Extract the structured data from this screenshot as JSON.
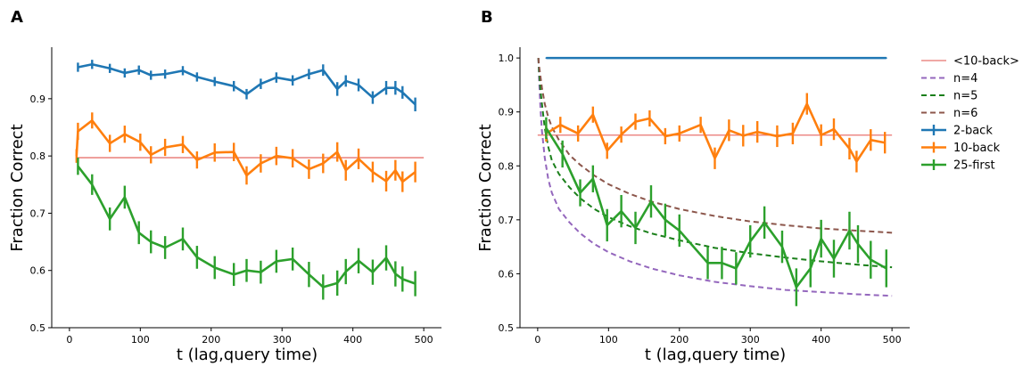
{
  "chart_data": [
    {
      "panel_label": "A",
      "type": "line",
      "xlabel": "t (lag,query time)",
      "ylabel": "Fraction Correct",
      "xlim": [
        -25,
        525
      ],
      "ylim": [
        0.5,
        0.99
      ],
      "xticks": [
        0,
        100,
        200,
        300,
        400,
        500
      ],
      "yticks": [
        0.5,
        0.6,
        0.7,
        0.8,
        0.9
      ],
      "grid": false,
      "hline": {
        "y": 0.797,
        "x_range": [
          10,
          500
        ],
        "color": "#e8736f"
      },
      "series": [
        {
          "color": "#1f77b4",
          "points": [
            [
              12,
              0.955
            ],
            [
              32,
              0.96
            ],
            [
              57,
              0.953
            ],
            [
              78,
              0.945
            ],
            [
              98,
              0.95
            ],
            [
              115,
              0.941
            ],
            [
              135,
              0.943
            ],
            [
              160,
              0.949
            ],
            [
              180,
              0.938
            ],
            [
              205,
              0.93
            ],
            [
              232,
              0.922
            ],
            [
              250,
              0.908
            ],
            [
              270,
              0.926
            ],
            [
              292,
              0.937
            ],
            [
              315,
              0.932
            ],
            [
              338,
              0.943
            ],
            [
              358,
              0.95
            ],
            [
              378,
              0.917
            ],
            [
              390,
              0.931
            ],
            [
              408,
              0.924
            ],
            [
              428,
              0.902
            ],
            [
              447,
              0.919
            ],
            [
              460,
              0.919
            ],
            [
              470,
              0.911
            ],
            [
              488,
              0.89
            ]
          ],
          "err": [
            0.008,
            0.008,
            0.008,
            0.008,
            0.008,
            0.008,
            0.008,
            0.008,
            0.008,
            0.008,
            0.009,
            0.009,
            0.009,
            0.009,
            0.009,
            0.009,
            0.01,
            0.012,
            0.01,
            0.011,
            0.011,
            0.012,
            0.012,
            0.011,
            0.012
          ]
        },
        {
          "color": "#ff7f0e",
          "points": [
            [
              10,
              0.8
            ],
            [
              12,
              0.843
            ],
            [
              32,
              0.862
            ],
            [
              57,
              0.822
            ],
            [
              78,
              0.838
            ],
            [
              100,
              0.824
            ],
            [
              115,
              0.802
            ],
            [
              135,
              0.815
            ],
            [
              160,
              0.82
            ],
            [
              180,
              0.793
            ],
            [
              205,
              0.806
            ],
            [
              232,
              0.807
            ],
            [
              250,
              0.766
            ],
            [
              270,
              0.787
            ],
            [
              292,
              0.8
            ],
            [
              315,
              0.796
            ],
            [
              338,
              0.777
            ],
            [
              358,
              0.787
            ],
            [
              378,
              0.807
            ],
            [
              390,
              0.775
            ],
            [
              408,
              0.795
            ],
            [
              428,
              0.772
            ],
            [
              447,
              0.756
            ],
            [
              460,
              0.775
            ],
            [
              470,
              0.755
            ],
            [
              488,
              0.772
            ]
          ],
          "err": [
            0.012,
            0.015,
            0.014,
            0.015,
            0.015,
            0.015,
            0.015,
            0.015,
            0.015,
            0.015,
            0.016,
            0.016,
            0.016,
            0.016,
            0.016,
            0.016,
            0.017,
            0.017,
            0.017,
            0.018,
            0.018,
            0.018,
            0.018,
            0.018,
            0.018,
            0.018
          ]
        },
        {
          "color": "#2ca02c",
          "points": [
            [
              12,
              0.782
            ],
            [
              32,
              0.75
            ],
            [
              57,
              0.69
            ],
            [
              78,
              0.728
            ],
            [
              98,
              0.666
            ],
            [
              115,
              0.65
            ],
            [
              135,
              0.64
            ],
            [
              160,
              0.655
            ],
            [
              180,
              0.623
            ],
            [
              205,
              0.605
            ],
            [
              232,
              0.593
            ],
            [
              250,
              0.6
            ],
            [
              270,
              0.597
            ],
            [
              292,
              0.616
            ],
            [
              315,
              0.62
            ],
            [
              338,
              0.593
            ],
            [
              358,
              0.571
            ],
            [
              378,
              0.578
            ],
            [
              390,
              0.598
            ],
            [
              408,
              0.617
            ],
            [
              428,
              0.597
            ],
            [
              447,
              0.622
            ],
            [
              460,
              0.594
            ],
            [
              470,
              0.585
            ],
            [
              488,
              0.577
            ]
          ],
          "err": [
            0.015,
            0.018,
            0.02,
            0.02,
            0.02,
            0.02,
            0.02,
            0.02,
            0.02,
            0.02,
            0.02,
            0.02,
            0.02,
            0.02,
            0.02,
            0.022,
            0.022,
            0.022,
            0.022,
            0.022,
            0.022,
            0.022,
            0.022,
            0.022,
            0.022
          ]
        }
      ]
    },
    {
      "panel_label": "B",
      "type": "line",
      "xlabel": "t (lag,query time)",
      "ylabel": "Fraction Correct",
      "xlim": [
        -25,
        525
      ],
      "ylim": [
        0.5,
        1.02
      ],
      "xticks": [
        0,
        100,
        200,
        300,
        400,
        500
      ],
      "yticks": [
        0.5,
        0.6,
        0.7,
        0.8,
        0.9,
        1.0
      ],
      "grid": false,
      "legend_position": "right",
      "legend": [
        {
          "label": "<10-back>",
          "style": "thin",
          "color": "#e8736f"
        },
        {
          "label": "n=4",
          "style": "dashed",
          "color": "#9467bd"
        },
        {
          "label": "n=5",
          "style": "dashed",
          "color": "#1a7f1a"
        },
        {
          "label": "n=6",
          "style": "dashed",
          "color": "#8c564b"
        },
        {
          "label": "2-back",
          "style": "errorbar",
          "color": "#1f77b4"
        },
        {
          "label": "10-back",
          "style": "errorbar",
          "color": "#ff7f0e"
        },
        {
          "label": "25-first",
          "style": "errorbar",
          "color": "#2ca02c"
        }
      ],
      "hline": {
        "y": 0.857,
        "x_range": [
          0,
          500
        ],
        "color": "#e8736f"
      },
      "fit_curves": [
        {
          "name": "n=4",
          "color": "#9467bd",
          "x": [
            1,
            2,
            4,
            6,
            10,
            15,
            20,
            30,
            45,
            60,
            80,
            100,
            130,
            160,
            200,
            250,
            300,
            350,
            400,
            450,
            500
          ],
          "y": [
            1.0,
            0.96,
            0.905,
            0.865,
            0.815,
            0.775,
            0.75,
            0.72,
            0.695,
            0.675,
            0.655,
            0.64,
            0.623,
            0.61,
            0.597,
            0.585,
            0.577,
            0.57,
            0.566,
            0.562,
            0.559
          ]
        },
        {
          "name": "n=5",
          "color": "#1a7f1a",
          "x": [
            1,
            2,
            4,
            6,
            10,
            15,
            20,
            30,
            45,
            60,
            80,
            100,
            130,
            160,
            200,
            250,
            300,
            350,
            400,
            450,
            500
          ],
          "y": [
            1.0,
            0.975,
            0.94,
            0.915,
            0.87,
            0.835,
            0.81,
            0.785,
            0.76,
            0.74,
            0.72,
            0.705,
            0.688,
            0.675,
            0.662,
            0.648,
            0.638,
            0.63,
            0.623,
            0.617,
            0.612
          ]
        },
        {
          "name": "n=6",
          "color": "#8c564b",
          "x": [
            1,
            2,
            4,
            6,
            10,
            15,
            20,
            30,
            45,
            60,
            80,
            100,
            130,
            160,
            200,
            250,
            300,
            350,
            400,
            450,
            500
          ],
          "y": [
            1.0,
            0.985,
            0.965,
            0.945,
            0.915,
            0.89,
            0.872,
            0.848,
            0.82,
            0.802,
            0.782,
            0.766,
            0.748,
            0.734,
            0.72,
            0.707,
            0.697,
            0.69,
            0.684,
            0.68,
            0.676
          ]
        }
      ],
      "series": [
        {
          "name": "2-back",
          "color": "#1f77b4",
          "points": [
            [
              12,
              1.0
            ],
            [
              100,
              1.0
            ],
            [
              200,
              1.0
            ],
            [
              300,
              1.0
            ],
            [
              400,
              1.0
            ],
            [
              492,
              1.0
            ]
          ],
          "err": [
            0,
            0,
            0,
            0,
            0,
            0
          ]
        },
        {
          "name": "10-back",
          "color": "#ff7f0e",
          "points": [
            [
              12,
              0.86
            ],
            [
              32,
              0.876
            ],
            [
              57,
              0.86
            ],
            [
              78,
              0.895
            ],
            [
              98,
              0.828
            ],
            [
              118,
              0.858
            ],
            [
              138,
              0.882
            ],
            [
              158,
              0.888
            ],
            [
              180,
              0.855
            ],
            [
              200,
              0.86
            ],
            [
              230,
              0.876
            ],
            [
              250,
              0.814
            ],
            [
              270,
              0.866
            ],
            [
              290,
              0.856
            ],
            [
              310,
              0.863
            ],
            [
              338,
              0.855
            ],
            [
              360,
              0.86
            ],
            [
              380,
              0.915
            ],
            [
              400,
              0.857
            ],
            [
              418,
              0.868
            ],
            [
              440,
              0.832
            ],
            [
              450,
              0.808
            ],
            [
              470,
              0.848
            ],
            [
              490,
              0.843
            ]
          ],
          "err": [
            0.015,
            0.015,
            0.015,
            0.015,
            0.015,
            0.015,
            0.015,
            0.015,
            0.015,
            0.015,
            0.015,
            0.02,
            0.02,
            0.02,
            0.02,
            0.02,
            0.02,
            0.02,
            0.02,
            0.02,
            0.02,
            0.02,
            0.02,
            0.02
          ]
        },
        {
          "name": "25-first",
          "color": "#2ca02c",
          "points": [
            [
              12,
              0.87
            ],
            [
              35,
              0.822
            ],
            [
              60,
              0.75
            ],
            [
              78,
              0.776
            ],
            [
              98,
              0.69
            ],
            [
              118,
              0.716
            ],
            [
              138,
              0.685
            ],
            [
              160,
              0.734
            ],
            [
              180,
              0.7
            ],
            [
              200,
              0.68
            ],
            [
              240,
              0.62
            ],
            [
              260,
              0.62
            ],
            [
              280,
              0.61
            ],
            [
              300,
              0.66
            ],
            [
              320,
              0.695
            ],
            [
              345,
              0.65
            ],
            [
              365,
              0.575
            ],
            [
              385,
              0.61
            ],
            [
              400,
              0.665
            ],
            [
              418,
              0.628
            ],
            [
              440,
              0.68
            ],
            [
              452,
              0.655
            ],
            [
              470,
              0.626
            ],
            [
              492,
              0.61
            ]
          ],
          "err": [
            0.02,
            0.025,
            0.025,
            0.025,
            0.03,
            0.03,
            0.03,
            0.03,
            0.03,
            0.03,
            0.03,
            0.03,
            0.03,
            0.03,
            0.03,
            0.03,
            0.035,
            0.035,
            0.035,
            0.035,
            0.035,
            0.035,
            0.035,
            0.035
          ]
        }
      ]
    }
  ]
}
